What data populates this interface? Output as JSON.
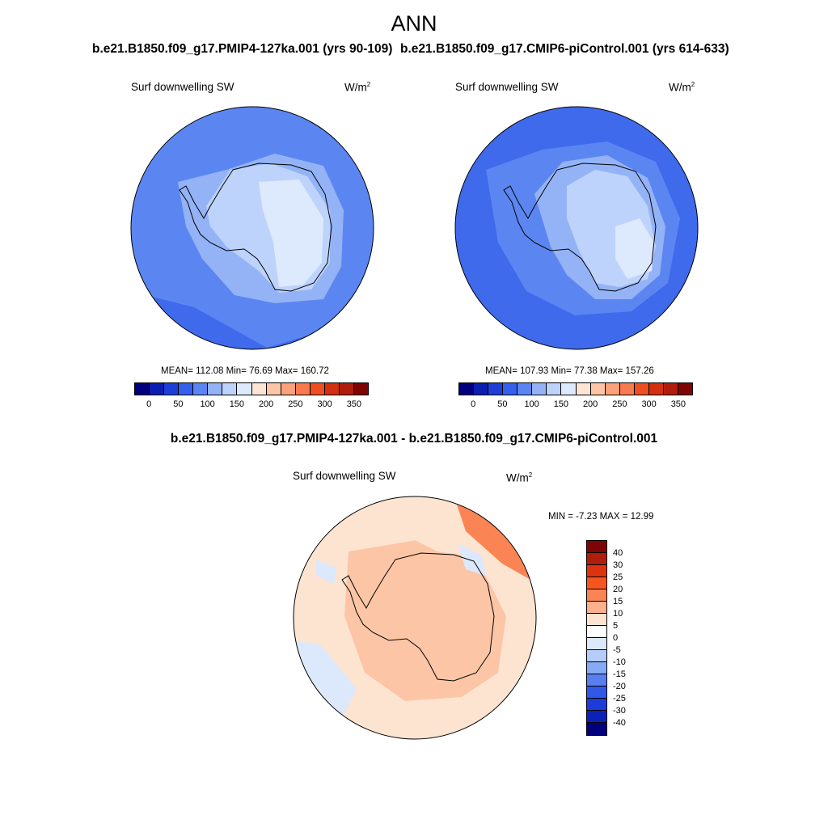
{
  "title": "ANN",
  "difference_title": "b.e21.B1850.f09_g17.PMIP4-127ka.001 - b.e21.B1850.f09_g17.CMIP6-piControl.001",
  "panels": [
    {
      "case_title": "b.e21.B1850.f09_g17.PMIP4-127ka.001 (yrs 90-109)",
      "variable": "Surf downwelling SW",
      "units_base": "W/m",
      "units_exp": "2",
      "stats": "MEAN= 112.08  Min=  76.69  Max= 160.72",
      "mean": 112.08,
      "min": 76.69,
      "max": 160.72
    },
    {
      "case_title": "b.e21.B1850.f09_g17.CMIP6-piControl.001 (yrs 614-633)",
      "variable": "Surf downwelling SW",
      "units_base": "W/m",
      "units_exp": "2",
      "stats": "MEAN= 107.93  Min=  77.38  Max= 157.26",
      "mean": 107.93,
      "min": 77.38,
      "max": 157.26
    }
  ],
  "difference_panel": {
    "variable": "Surf downwelling SW",
    "units_base": "W/m",
    "units_exp": "2",
    "stats": "MIN =  -7.23 MAX =  12.99",
    "min": -7.23,
    "max": 12.99
  },
  "colorbar_main": {
    "colors": [
      "#00007f",
      "#0a1fb0",
      "#1d3fd8",
      "#3560ee",
      "#5b86f2",
      "#94b3f7",
      "#bdd3fb",
      "#dde9fc",
      "#fce5d4",
      "#fcc6a6",
      "#fba27a",
      "#f87a4d",
      "#ed4f23",
      "#d3300f",
      "#b01d0a",
      "#7f0404"
    ],
    "ticks": [
      "0",
      "50",
      "100",
      "150",
      "200",
      "250",
      "300",
      "350"
    ]
  },
  "colorbar_diff": {
    "colors": [
      "#7f0404",
      "#b01d0a",
      "#dd3410",
      "#f5561f",
      "#fb8455",
      "#fcb08d",
      "#fde4d1",
      "#ffffff",
      "#dce8fb",
      "#b5cdf8",
      "#86aaf3",
      "#5780ee",
      "#3158e8",
      "#1b3bda",
      "#0a22b8",
      "#00007f"
    ],
    "ticks": [
      "40",
      "30",
      "25",
      "20",
      "15",
      "10",
      "5",
      "0",
      "-5",
      "-10",
      "-15",
      "-20",
      "-25",
      "-30",
      "-40"
    ]
  },
  "map_colors": {
    "ocean_mid": "#5b86f2",
    "ocean_low": "#3f6aec",
    "sea_ice": "#94b3f7",
    "plateau": "#bdd3fb",
    "high": "#dde9fc",
    "diff_base": "#fde4d1",
    "diff_mid": "#fcc6a6",
    "diff_high": "#fb8455",
    "diff_neg": "#dce8fb"
  }
}
